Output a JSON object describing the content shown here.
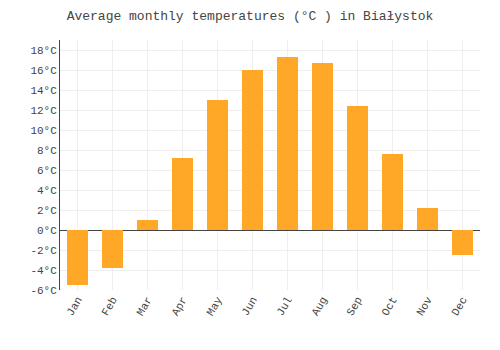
{
  "chart_data": {
    "type": "bar",
    "title": "Average monthly temperatures (°C ) in Białystok",
    "categories": [
      "Jan",
      "Feb",
      "Mar",
      "Apr",
      "May",
      "Jun",
      "Jul",
      "Aug",
      "Sep",
      "Oct",
      "Nov",
      "Dec"
    ],
    "values": [
      -5.5,
      -3.8,
      1.0,
      7.2,
      13.0,
      16.0,
      17.3,
      16.7,
      12.4,
      7.6,
      2.2,
      -2.5
    ],
    "color": "#FFA726",
    "ylim": [
      -6,
      19
    ],
    "yticks": [
      {
        "value": -6,
        "label": "-6°C"
      },
      {
        "value": -4,
        "label": "-4°C"
      },
      {
        "value": -2,
        "label": "-2°C"
      },
      {
        "value": 0,
        "label": "0°C"
      },
      {
        "value": 2,
        "label": "2°C"
      },
      {
        "value": 4,
        "label": "4°C"
      },
      {
        "value": 6,
        "label": "6°C"
      },
      {
        "value": 8,
        "label": "8°C"
      },
      {
        "value": 10,
        "label": "10°C"
      },
      {
        "value": 12,
        "label": "12°C"
      },
      {
        "value": 14,
        "label": "14°C"
      },
      {
        "value": 16,
        "label": "16°C"
      },
      {
        "value": 18,
        "label": "18°C"
      }
    ],
    "grid": true
  }
}
